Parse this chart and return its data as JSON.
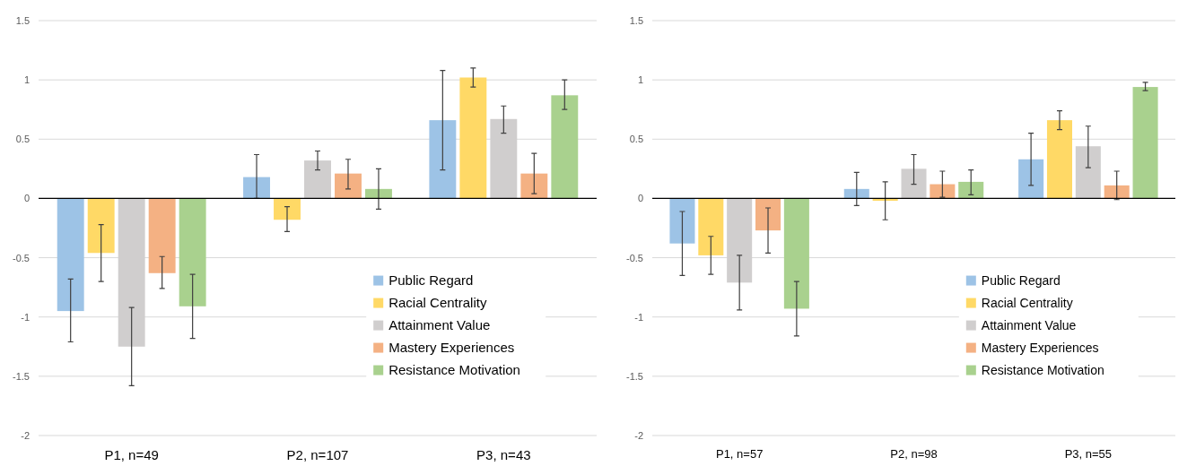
{
  "chart_data": [
    {
      "type": "bar",
      "categories": [
        "P1, n=49",
        "P2, n=107",
        "P3, n=43"
      ],
      "ylim": [
        -2,
        1.5
      ],
      "yticks": [
        -2,
        -1.5,
        -1,
        -0.5,
        0,
        0.5,
        1,
        1.5
      ],
      "grid": "y",
      "legend": "bottom right",
      "series": [
        {
          "name": "Public Regard",
          "color": "#9dc3e6",
          "values": [
            -0.95,
            0.18,
            0.66
          ],
          "errors": [
            [
              -1.21,
              -0.68
            ],
            [
              0,
              0.37
            ],
            [
              0.24,
              1.08
            ]
          ]
        },
        {
          "name": "Racial Centrality",
          "color": "#ffd966",
          "values": [
            -0.46,
            -0.18,
            1.02
          ],
          "errors": [
            [
              -0.7,
              -0.22
            ],
            [
              -0.28,
              -0.07
            ],
            [
              0.94,
              1.1
            ]
          ]
        },
        {
          "name": "Attainment Value",
          "color": "#d0cece",
          "values": [
            -1.25,
            0.32,
            0.67
          ],
          "errors": [
            [
              -1.58,
              -0.92
            ],
            [
              0.24,
              0.4
            ],
            [
              0.55,
              0.78
            ]
          ]
        },
        {
          "name": "Mastery Experiences",
          "color": "#f4b183",
          "values": [
            -0.63,
            0.21,
            0.21
          ],
          "errors": [
            [
              -0.76,
              -0.49
            ],
            [
              0.08,
              0.33
            ],
            [
              0.04,
              0.38
            ]
          ]
        },
        {
          "name": "Resistance Motivation",
          "color": "#a9d18e",
          "values": [
            -0.91,
            0.08,
            0.87
          ],
          "errors": [
            [
              -1.18,
              -0.64
            ],
            [
              -0.09,
              0.25
            ],
            [
              0.75,
              1.0
            ]
          ]
        }
      ]
    },
    {
      "type": "bar",
      "categories": [
        "P1, n=57",
        "P2, n=98",
        "P3, n=55"
      ],
      "ylim": [
        -2,
        1.5
      ],
      "yticks": [
        -2,
        -1.5,
        -1,
        -0.5,
        0,
        0.5,
        1,
        1.5
      ],
      "grid": "y",
      "legend": "bottom right",
      "series": [
        {
          "name": "Public Regard",
          "color": "#9dc3e6",
          "values": [
            -0.38,
            0.08,
            0.33
          ],
          "errors": [
            [
              -0.65,
              -0.11
            ],
            [
              -0.06,
              0.22
            ],
            [
              0.11,
              0.55
            ]
          ]
        },
        {
          "name": "Racial Centrality",
          "color": "#ffd966",
          "values": [
            -0.48,
            -0.02,
            0.66
          ],
          "errors": [
            [
              -0.64,
              -0.32
            ],
            [
              -0.18,
              0.14
            ],
            [
              0.58,
              0.74
            ]
          ]
        },
        {
          "name": "Attainment Value",
          "color": "#d0cece",
          "values": [
            -0.71,
            0.25,
            0.44
          ],
          "errors": [
            [
              -0.94,
              -0.48
            ],
            [
              0.12,
              0.37
            ],
            [
              0.26,
              0.61
            ]
          ]
        },
        {
          "name": "Mastery Experiences",
          "color": "#f4b183",
          "values": [
            -0.27,
            0.12,
            0.11
          ],
          "errors": [
            [
              -0.46,
              -0.08
            ],
            [
              0.01,
              0.23
            ],
            [
              -0.01,
              0.23
            ]
          ]
        },
        {
          "name": "Resistance Motivation",
          "color": "#a9d18e",
          "values": [
            -0.93,
            0.14,
            0.94
          ],
          "errors": [
            [
              -1.16,
              -0.7
            ],
            [
              0.03,
              0.24
            ],
            [
              0.91,
              0.98
            ]
          ]
        }
      ]
    }
  ]
}
